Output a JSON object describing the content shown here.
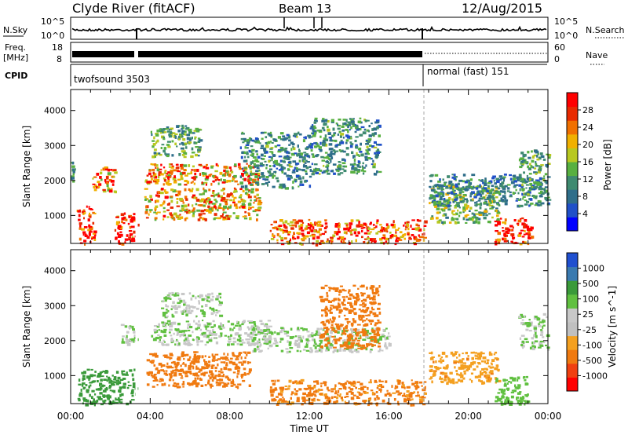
{
  "header": {
    "station": "Clyde River (fitACF)",
    "beam": "Beam 13",
    "date": "12/Aug/2015"
  },
  "noise_panel": {
    "left_label": "N.Sky",
    "left_ticks": [
      "10^5",
      "10^0"
    ],
    "right_ticks": [
      "10^5",
      "10^0"
    ],
    "right_label": "N.Search"
  },
  "freq_panel": {
    "left_label_1": "Freq.",
    "left_label_2": "[MHz]",
    "left_ticks": [
      "18",
      "8"
    ],
    "right_ticks": [
      "60",
      "0"
    ],
    "right_label": "Nave"
  },
  "cpid_panel": {
    "label": "CPID",
    "mode_1": "twofsound 3503",
    "mode_2": "normal (fast) 151"
  },
  "colors": {
    "power_scale": [
      "#0000ff",
      "#2050c8",
      "#2f6e8a",
      "#3f8a70",
      "#58b040",
      "#b8c820",
      "#f0b000",
      "#f07000",
      "#e82a00",
      "#ff0000"
    ],
    "velocity_scale": [
      "#ff0000",
      "#f04010",
      "#f07a10",
      "#f4a020",
      "#c0c0c0",
      "#c8c8c8",
      "#60c040",
      "#3a9a3a",
      "#3a7ab0",
      "#2050d0"
    ]
  },
  "chart_data": [
    {
      "type": "heatmap",
      "title": "Power",
      "ylabel": "Slant Range [km]",
      "yticks": [
        "1000",
        "2000",
        "3000",
        "4000"
      ],
      "ylim": [
        200,
        4600
      ],
      "xlim_hours": [
        0,
        24
      ],
      "colorbar_label": "Power [dB]",
      "colorbar_ticks": [
        "4",
        "8",
        "12",
        "16",
        "20",
        "24",
        "28"
      ],
      "colorbar_range": [
        0,
        30
      ],
      "features": [
        {
          "t": [
            0.0,
            0.1
          ],
          "range": [
            2000,
            2600
          ],
          "value": 12
        },
        {
          "t": [
            0.3,
            1.2
          ],
          "range": [
            200,
            1300
          ],
          "value": 28
        },
        {
          "t": [
            1.0,
            2.2
          ],
          "range": [
            1700,
            2400
          ],
          "value": 22
        },
        {
          "t": [
            2.2,
            3.3
          ],
          "range": [
            200,
            1100
          ],
          "value": 27
        },
        {
          "t": [
            3.7,
            9.5
          ],
          "range": [
            1900,
            2500
          ],
          "value": 22
        },
        {
          "t": [
            3.7,
            9.5
          ],
          "range": [
            900,
            1800
          ],
          "value": 20
        },
        {
          "t": [
            4.0,
            6.5
          ],
          "range": [
            2700,
            3600
          ],
          "value": 12
        },
        {
          "t": [
            8.5,
            12.0
          ],
          "range": [
            1800,
            3400
          ],
          "value": 10
        },
        {
          "t": [
            12.0,
            15.5
          ],
          "range": [
            2200,
            3800
          ],
          "value": 10
        },
        {
          "t": [
            10.0,
            17.8
          ],
          "range": [
            200,
            900
          ],
          "value": 24
        },
        {
          "t": [
            18.0,
            21.5
          ],
          "range": [
            800,
            1900
          ],
          "value": 14
        },
        {
          "t": [
            18.0,
            24.0
          ],
          "range": [
            1300,
            2200
          ],
          "value": 9
        },
        {
          "t": [
            21.3,
            23.2
          ],
          "range": [
            200,
            950
          ],
          "value": 28
        },
        {
          "t": [
            22.5,
            24.0
          ],
          "range": [
            1500,
            2900
          ],
          "value": 12
        }
      ]
    },
    {
      "type": "heatmap",
      "title": "Velocity",
      "ylabel": "Slant Range [km]",
      "yticks": [
        "1000",
        "2000",
        "3000",
        "4000"
      ],
      "ylim": [
        200,
        4600
      ],
      "xlim_hours": [
        0,
        24
      ],
      "colorbar_label": "Velocity [m s^-1]",
      "colorbar_ticks": [
        "-1000",
        "-500",
        "-100",
        "-25",
        "25",
        "100",
        "500",
        "1000"
      ],
      "features": [
        {
          "t": [
            0.3,
            3.3
          ],
          "range": [
            200,
            1200
          ],
          "value": 50
        },
        {
          "t": [
            2.5,
            3.3
          ],
          "range": [
            1900,
            2500
          ],
          "value": 0
        },
        {
          "t": [
            4.0,
            10.0
          ],
          "range": [
            1900,
            2600
          ],
          "value": 0
        },
        {
          "t": [
            4.5,
            7.5
          ],
          "range": [
            2700,
            3400
          ],
          "value": 0
        },
        {
          "t": [
            3.8,
            9.0
          ],
          "range": [
            700,
            1700
          ],
          "value": -150
        },
        {
          "t": [
            9.0,
            16.0
          ],
          "range": [
            1700,
            2400
          ],
          "value": 0
        },
        {
          "t": [
            10.0,
            17.8
          ],
          "range": [
            200,
            900
          ],
          "value": -120
        },
        {
          "t": [
            12.5,
            15.5
          ],
          "range": [
            1800,
            3600
          ],
          "value": -300
        },
        {
          "t": [
            18.0,
            21.5
          ],
          "range": [
            800,
            1700
          ],
          "value": -80
        },
        {
          "t": [
            21.3,
            23.0
          ],
          "range": [
            200,
            1000
          ],
          "value": 10
        },
        {
          "t": [
            22.5,
            24.0
          ],
          "range": [
            1800,
            2800
          ],
          "value": 0
        }
      ]
    }
  ],
  "time_axis": {
    "xticks": [
      "00:00",
      "04:00",
      "08:00",
      "12:00",
      "16:00",
      "20:00",
      "00:00"
    ],
    "xlabel": "Time UT"
  }
}
